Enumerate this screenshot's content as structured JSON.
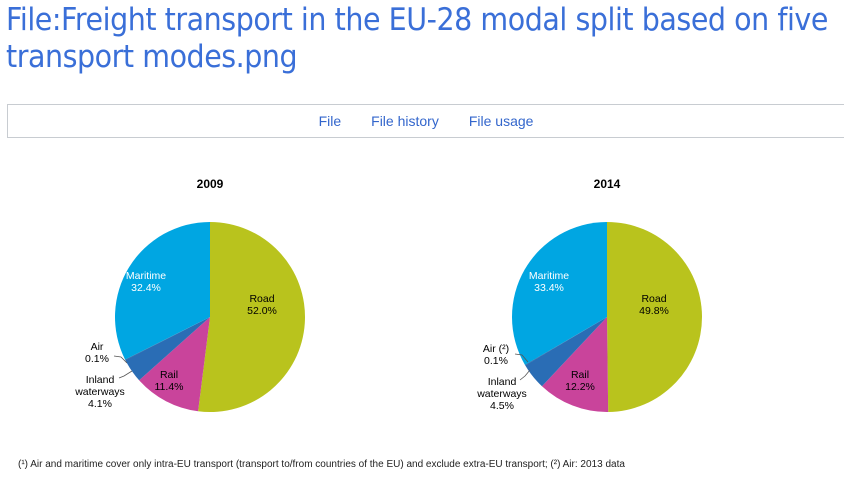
{
  "title": "File:Freight transport in the EU-28 modal split based on five transport modes.png",
  "tabs": [
    {
      "label": "File"
    },
    {
      "label": "File history"
    },
    {
      "label": "File usage"
    }
  ],
  "footnote": "(¹) Air and maritime cover only intra-EU transport (transport to/from countries of the EU) and exclude extra-EU transport; (²) Air: 2013 data",
  "chart_data": [
    {
      "type": "pie",
      "title": "2009",
      "categories": [
        "Road",
        "Rail",
        "Inland waterways",
        "Air",
        "Maritime"
      ],
      "values": [
        52.0,
        11.4,
        4.1,
        0.1,
        32.4
      ],
      "labels": [
        "Road\n52.0%",
        "Rail\n11.4%",
        "Inland\nwaterways\n4.1%",
        "Air\n0.1%",
        "Maritime\n32.4%"
      ]
    },
    {
      "type": "pie",
      "title": "2014",
      "categories": [
        "Road",
        "Rail",
        "Inland waterways",
        "Air",
        "Maritime"
      ],
      "values": [
        49.8,
        12.2,
        4.5,
        0.1,
        33.4
      ],
      "labels": [
        "Road\n49.8%",
        "Rail\n12.2%",
        "Inland\nwaterways\n4.5%",
        "Air (²)\n0.1%",
        "Maritime\n33.4%"
      ]
    }
  ],
  "colors": [
    "#b9c31d",
    "#c9449b",
    "#2a6db5",
    "#1f5a9e",
    "#00a6e2"
  ]
}
